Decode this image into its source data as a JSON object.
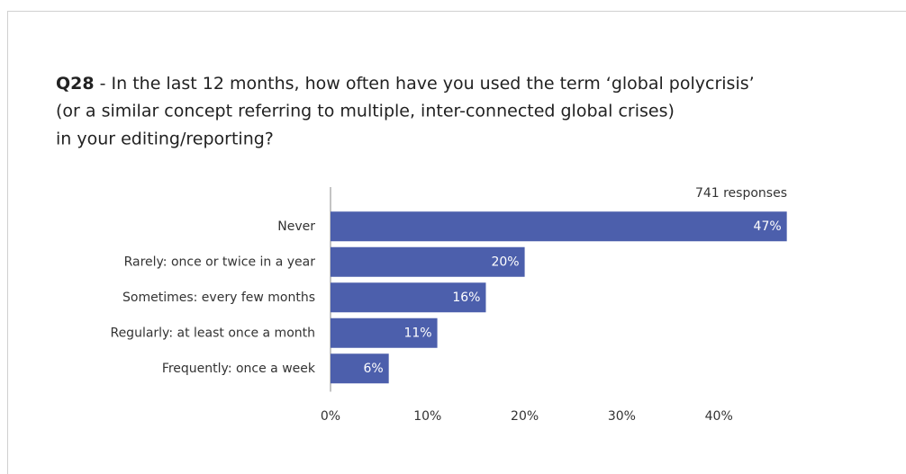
{
  "chart_data": {
    "type": "bar",
    "orientation": "horizontal",
    "title_prefix": "Q28",
    "title_lines": [
      " - In the last 12 months, how often have you used the term ‘global polycrisis’",
      "(or a similar concept referring to multiple, inter-connected global crises)",
      "in your editing/reporting?"
    ],
    "annotation": "741 responses",
    "categories": [
      "Never",
      "Rarely: once or twice in a year",
      "Sometimes: every few months",
      "Regularly: at least once a month",
      "Frequently: once a week"
    ],
    "values": [
      47,
      20,
      16,
      11,
      6
    ],
    "value_labels": [
      "47%",
      "20%",
      "16%",
      "11%",
      "6%"
    ],
    "color": "#4c5fac",
    "xlim": [
      0,
      50
    ],
    "xticks": [
      {
        "value": 0,
        "label": "0%"
      },
      {
        "value": 10,
        "label": "10%"
      },
      {
        "value": 20,
        "label": "20%"
      },
      {
        "value": 30,
        "label": "30%"
      },
      {
        "value": 40,
        "label": "40%"
      }
    ]
  }
}
